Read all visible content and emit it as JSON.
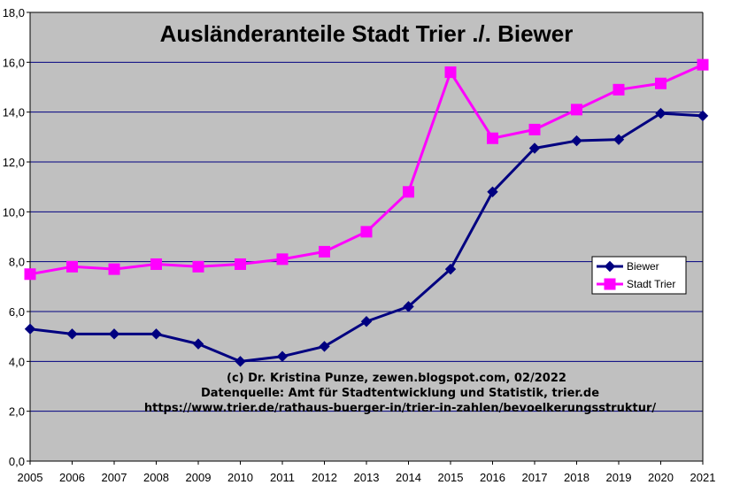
{
  "chart_data": {
    "type": "line",
    "title": "Ausländeranteile Stadt Trier ./. Biewer",
    "credits": [
      "(c) Dr. Kristina Punze, zewen.blogspot.com, 02/2022",
      "Datenquelle: Amt für Stadtentwicklung und Statistik, trier.de",
      "https://www.trier.de/rathaus-buerger-in/trier-in-zahlen/bevoelkerungsstruktur/"
    ],
    "x": [
      "2005",
      "2006",
      "2007",
      "2008",
      "2009",
      "2010",
      "2011",
      "2012",
      "2013",
      "2014",
      "2015",
      "2016",
      "2017",
      "2018",
      "2019",
      "2020",
      "2021"
    ],
    "ylim": [
      0,
      18
    ],
    "yticks": [
      "0,0",
      "2,0",
      "4,0",
      "6,0",
      "8,0",
      "10,0",
      "12,0",
      "14,0",
      "16,0",
      "18,0"
    ],
    "grid": true,
    "legend_position": "right",
    "series": [
      {
        "name": "Biewer",
        "color": "#000080",
        "marker": "diamond",
        "values": [
          5.3,
          5.1,
          5.1,
          5.1,
          4.7,
          4.0,
          4.2,
          4.6,
          5.6,
          6.2,
          7.7,
          10.8,
          12.55,
          12.85,
          12.9,
          13.95,
          13.85
        ]
      },
      {
        "name": "Stadt Trier",
        "color": "#ff00ff",
        "marker": "square",
        "values": [
          7.5,
          7.8,
          7.7,
          7.9,
          7.8,
          7.9,
          8.1,
          8.4,
          9.2,
          10.8,
          15.6,
          12.95,
          13.3,
          14.1,
          14.9,
          15.15,
          15.9
        ]
      }
    ]
  }
}
